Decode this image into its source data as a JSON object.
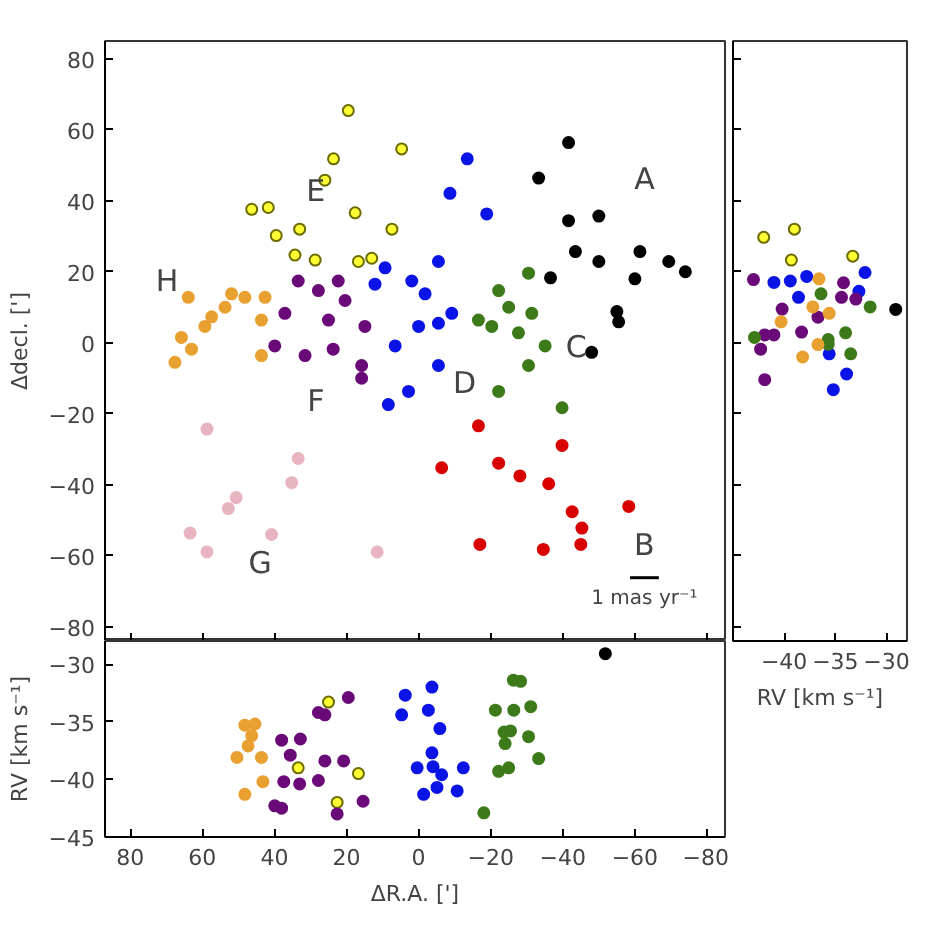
{
  "chart_data": [
    {
      "type": "scatter",
      "ylabel": "Δdecl. [']",
      "xlim": [
        87,
        -85
      ],
      "ylim": [
        -84,
        85
      ],
      "xticks": [
        80,
        60,
        40,
        20,
        0,
        -20,
        -40,
        -60,
        -80
      ],
      "yticks": [
        -80,
        -60,
        -40,
        -20,
        0,
        20,
        40,
        60,
        80
      ],
      "tick_labels": "y",
      "grid": false,
      "marker": "circle",
      "series": [
        {
          "color": "#000000",
          "x": [
            -41.6,
            -33.3,
            -50,
            -41.6,
            -61.4,
            -50,
            -60,
            -36.6,
            -43.5,
            -55,
            -55.5,
            -74,
            -69.4,
            -48
          ],
          "values": [
            56.4,
            46.4,
            35.7,
            34.4,
            25.7,
            22.9,
            18,
            18.3,
            25.7,
            8.8,
            5.9,
            20,
            22.9,
            -2.7
          ]
        },
        {
          "color": "#ffff33",
          "x": [
            23.6,
            4.7,
            19.5,
            26,
            33,
            17.6,
            34.3,
            28.7,
            39.5,
            7.4,
            41.7,
            46.3,
            16.7,
            13
          ],
          "values": [
            51.8,
            54.6,
            65.4,
            45.8,
            32,
            36.6,
            24.7,
            23.3,
            30.2,
            32,
            38.1,
            37.6,
            22.9,
            23.8
          ]
        },
        {
          "color": "#e8a030",
          "x": [
            48.2,
            42.6,
            53.7,
            57.4,
            65.8,
            63,
            67.6,
            43.6,
            63.9,
            51.9,
            59.3,
            43.6
          ],
          "values": [
            12.8,
            12.8,
            10,
            7.3,
            1.5,
            -1.8,
            -5.5,
            -3.6,
            12.8,
            13.8,
            4.6,
            6.4
          ]
        },
        {
          "color": "#6a0a78",
          "x": [
            33.4,
            37.1,
            27.8,
            31.5,
            23.7,
            25,
            14.9,
            22.3,
            15.8,
            15.8,
            39.9,
            20.4
          ],
          "values": [
            17.4,
            8.3,
            14.7,
            -3.6,
            -1.8,
            6.4,
            4.6,
            17.4,
            -6.4,
            -10,
            -0.9,
            11.9
          ]
        },
        {
          "color": "#0a14e6",
          "x": [
            -13.5,
            -8.7,
            -18.9,
            -5.5,
            1.9,
            -9.2,
            -5.5,
            0,
            9.3,
            8.4,
            -5.5,
            2.8,
            -1.8,
            6.5,
            12.1
          ],
          "values": [
            51.8,
            42.1,
            36.3,
            22.9,
            17.4,
            8.3,
            5.5,
            4.6,
            21.1,
            -17.4,
            -6.4,
            -13.7,
            13.8,
            -0.9,
            16.5
          ]
        },
        {
          "color": "#3d7a1a",
          "x": [
            -30.5,
            -22.2,
            -27.7,
            -20.3,
            -30.5,
            -31.4,
            -39.8,
            -22.2,
            -16.6,
            -35.1,
            -25
          ],
          "values": [
            19.6,
            14.7,
            2.8,
            4.6,
            -6.4,
            8.3,
            -18.3,
            -13.7,
            6.4,
            -0.9,
            10
          ]
        },
        {
          "color": "#d90000",
          "x": [
            -36.1,
            -39.8,
            -42.6,
            -45.3,
            -45,
            -34.6,
            -17,
            -28.1,
            -22.2,
            -16.6,
            -6.4,
            -58.3
          ],
          "values": [
            -39.7,
            -28.9,
            -47.6,
            -52.2,
            -56.8,
            -58.2,
            -56.8,
            -37.5,
            -33.9,
            -23.4,
            -35.2,
            -46.1
          ]
        },
        {
          "color": "#e8b4c0",
          "x": [
            58.7,
            33.4,
            35.2,
            50.6,
            52.8,
            63.4,
            40.8,
            58.7,
            11.5
          ],
          "values": [
            -24.3,
            -32.6,
            -39.4,
            -43.6,
            -46.7,
            -53.6,
            -54,
            -58.9,
            -58.9
          ]
        }
      ],
      "annotations": [
        "A",
        "B",
        "C",
        "D",
        "E",
        "F",
        "G",
        "H",
        "1 mas yr⁻¹"
      ]
    },
    {
      "type": "scatter",
      "xlabel": "RV [km s⁻¹]",
      "xlim": [
        -45,
        -28
      ],
      "ylim": [
        -84,
        85
      ],
      "xticks": [
        -40,
        -35,
        -30
      ],
      "yticks": [
        -80,
        -60,
        -40,
        -20,
        0,
        20,
        40,
        60,
        80
      ],
      "tick_labels": "x",
      "grid": false,
      "marker": "circle",
      "series": [
        {
          "color": "#ffff33",
          "x": [
            -42,
            -39,
            -33.3,
            -39.3
          ],
          "values": [
            29.7,
            32,
            24.4,
            23.3
          ]
        },
        {
          "color": "#000000",
          "x": [
            -29.1
          ],
          "values": [
            9.4
          ]
        },
        {
          "color": "#0a14e6",
          "x": [
            -41,
            -39.4,
            -37.8,
            -32.1,
            -32.7,
            -35.6,
            -33.9,
            -35.2,
            -38.6
          ],
          "values": [
            17,
            17.4,
            18.7,
            19.8,
            14.5,
            -3.1,
            -8.8,
            -13.2,
            12.8
          ]
        },
        {
          "color": "#6a0a78",
          "x": [
            -43,
            -41.9,
            -41,
            -42.3,
            -41.9,
            -34.2,
            -34.4,
            -40.2,
            -36.7,
            -38.3,
            -33
          ],
          "values": [
            17.8,
            2.2,
            2.2,
            -1.8,
            -10.4,
            16.9,
            12.8,
            9.5,
            7.2,
            3,
            12.3
          ]
        },
        {
          "color": "#3d7a1a",
          "x": [
            -42.9,
            -36.4,
            -34,
            -35.7,
            -31.6,
            -33.5,
            -35.7
          ],
          "values": [
            1.5,
            13.8,
            2.8,
            0.9,
            10.1,
            -3.1,
            -0.4
          ]
        },
        {
          "color": "#e8a030",
          "x": [
            -38.2,
            -40.3,
            -36.6,
            -37.2,
            -35.6,
            -36.7
          ],
          "values": [
            -4,
            5.9,
            18,
            10.1,
            8.3,
            -0.5
          ]
        }
      ]
    },
    {
      "type": "scatter",
      "xlabel": "ΔR.A. [']",
      "ylabel": "RV [km s⁻¹]",
      "xlim": [
        87,
        -85
      ],
      "ylim": [
        -45,
        -28
      ],
      "xticks": [
        80,
        60,
        40,
        20,
        0,
        -20,
        -40,
        -60,
        -80
      ],
      "yticks": [
        -45,
        -40,
        -35,
        -30
      ],
      "grid": false,
      "marker": "circle",
      "series": [
        {
          "color": "#000000",
          "x": [
            -51.8
          ],
          "values": [
            -29.1
          ]
        },
        {
          "color": "#ffff33",
          "x": [
            25,
            33.4,
            16.7,
            22.6
          ],
          "values": [
            -33.3,
            -39,
            -39.5,
            -42
          ]
        },
        {
          "color": "#e8a030",
          "x": [
            48.2,
            45.4,
            47.3,
            50.4,
            43.6,
            43.2,
            48.2,
            46.3
          ],
          "values": [
            -35.3,
            -35.2,
            -37.1,
            -38.1,
            -38.1,
            -40.2,
            -41.3,
            -36.2
          ]
        },
        {
          "color": "#6a0a78",
          "x": [
            38,
            26,
            27.8,
            19.5,
            32.8,
            20.8,
            26,
            37.4,
            38,
            39.9,
            33,
            27.8,
            22.6,
            15.4,
            35.6
          ],
          "values": [
            -36.6,
            -34.4,
            -34.2,
            -32.9,
            -36.5,
            -38.4,
            -38.4,
            -40.2,
            -42.5,
            -42.3,
            -40.4,
            -40.1,
            -43,
            -41.9,
            -37.9
          ]
        },
        {
          "color": "#0a14e6",
          "x": [
            3.7,
            4.7,
            -3.7,
            -2.7,
            -5.9,
            -3.7,
            -4,
            -6.4,
            -12.4,
            0.4,
            -1.4,
            -5.1,
            -10.7
          ],
          "values": [
            -32.7,
            -34.4,
            -32,
            -34,
            -35.6,
            -37.7,
            -38.9,
            -39.6,
            -39,
            -39,
            -41.3,
            -40.7,
            -41
          ]
        },
        {
          "color": "#3d7a1a",
          "x": [
            -26.3,
            -28.3,
            -21.3,
            -26.4,
            -31.1,
            -23.7,
            -25.5,
            -30.5,
            -24,
            -33.3,
            -25,
            -22.2,
            -18.1
          ],
          "values": [
            -31.4,
            -31.5,
            -34,
            -34,
            -33.7,
            -35.9,
            -35.8,
            -36.3,
            -36.9,
            -38.2,
            -39,
            -39.3,
            -42.9
          ]
        }
      ]
    }
  ]
}
